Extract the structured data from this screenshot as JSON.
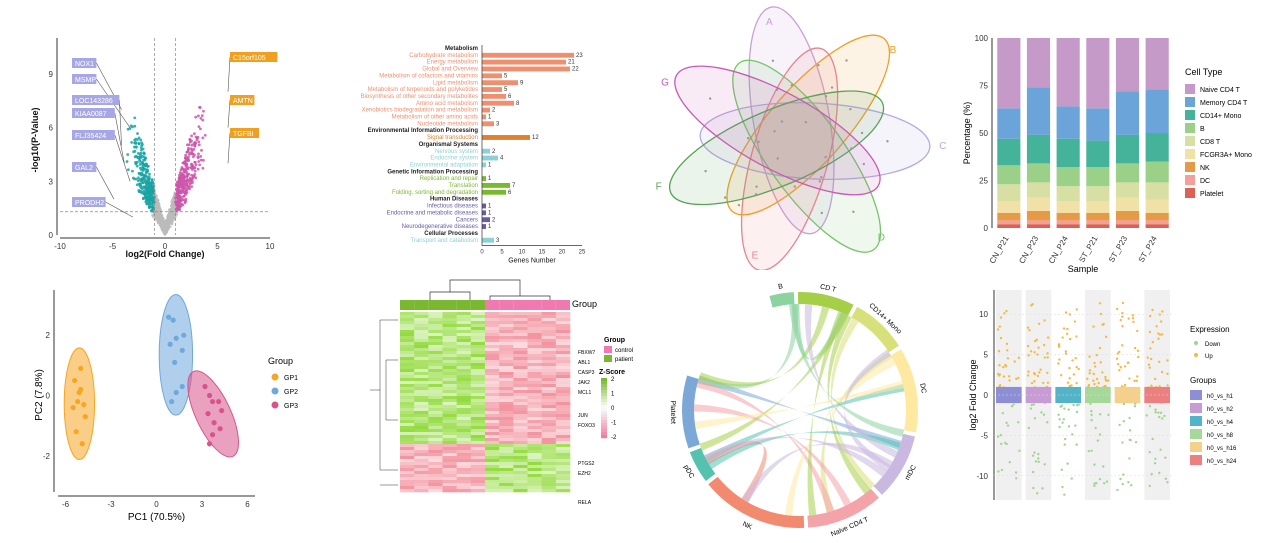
{
  "colors": {
    "volcano_down": "#1aa3a3",
    "volcano_up": "#cc55aa",
    "volcano_ns": "#bbbbbb",
    "label_down": "#a7a7e8",
    "label_up": "#f0a020",
    "bar_metab": "#ee9070",
    "bar_env": "#dd8030",
    "bar_org": "#8cd0d8",
    "bar_gen": "#7ab830",
    "bar_hd": "#6a5aa8",
    "bar_cell": "#8cd0d8",
    "pca_gp1": "#f5a623",
    "pca_gp2": "#6fa8dc",
    "pca_gp3": "#d9538a",
    "heat_control": "#f07ab0",
    "heat_patient": "#7ab830"
  },
  "chart_data": [
    {
      "type": "scatter",
      "name": "volcano",
      "xlabel": "log2(Fold Change)",
      "ylabel": "-log10(P-Value)",
      "xlim": [
        -10,
        10
      ],
      "ylim": [
        0,
        11
      ],
      "xticks": [
        "-10",
        "-5",
        "0",
        "5",
        "10"
      ],
      "yticks": [
        "0",
        "3",
        "6",
        "9"
      ],
      "down_labels": [
        "NOX1",
        "MSMP",
        "LOC143286",
        "KIAA0087",
        "FLJ35424",
        "GAL2",
        "PRODH2"
      ],
      "up_labels": [
        "C15orf105",
        "AMTN",
        "TGFBI"
      ]
    },
    {
      "type": "bar",
      "name": "kegg",
      "xlabel": "Genes Number",
      "xlim": [
        0,
        25
      ],
      "xticks": [
        "0",
        "5",
        "10",
        "15",
        "20",
        "25"
      ],
      "rows": [
        {
          "label": "Metabolism",
          "header": true
        },
        {
          "label": "Carbohydrate metabolism",
          "value": 23,
          "group": "metab"
        },
        {
          "label": "Energy metabolism",
          "value": 21,
          "group": "metab"
        },
        {
          "label": "Global and Overview",
          "value": 22,
          "group": "metab"
        },
        {
          "label": "Metabolism of cofactors and vitamins",
          "value": 5,
          "group": "metab"
        },
        {
          "label": "Lipid metabolism",
          "value": 9,
          "group": "metab"
        },
        {
          "label": "Metabolism of terpenoids and polyketides",
          "value": 5,
          "group": "metab"
        },
        {
          "label": "Biosynthesis of other secondary metabolites",
          "value": 6,
          "group": "metab"
        },
        {
          "label": "Amino acid metabolism",
          "value": 8,
          "group": "metab"
        },
        {
          "label": "Xenobiotics biodegradation and metabolism",
          "value": 2,
          "group": "metab"
        },
        {
          "label": "Metabolism of other amino acids",
          "value": 1,
          "group": "metab"
        },
        {
          "label": "Nucleotide metabolism",
          "value": 3,
          "group": "metab"
        },
        {
          "label": "Environmental Information Processing",
          "header": true
        },
        {
          "label": "Signal transduction",
          "value": 12,
          "group": "env"
        },
        {
          "label": "Organismal Systems",
          "header": true
        },
        {
          "label": "Nervous system",
          "value": 2,
          "group": "org"
        },
        {
          "label": "Endocrine system",
          "value": 4,
          "group": "org"
        },
        {
          "label": "Environmental adaptation",
          "value": 1,
          "group": "org"
        },
        {
          "label": "Genetic Information Processing",
          "header": true
        },
        {
          "label": "Replication and repair",
          "value": 1,
          "group": "gen"
        },
        {
          "label": "Translation",
          "value": 7,
          "group": "gen"
        },
        {
          "label": "Folding, sorting and degradation",
          "value": 6,
          "group": "gen"
        },
        {
          "label": "Human Diseases",
          "header": true
        },
        {
          "label": "Infectious diseases",
          "value": 1,
          "group": "hd"
        },
        {
          "label": "Endocrine and metabolic diseases",
          "value": 1,
          "group": "hd"
        },
        {
          "label": "Cancers",
          "value": 2,
          "group": "hd"
        },
        {
          "label": "Neurodegenerative diseases",
          "value": 1,
          "group": "hd"
        },
        {
          "label": "Cellular Processes",
          "header": true
        },
        {
          "label": "Transport and catabolism",
          "value": 3,
          "group": "cell"
        }
      ]
    },
    {
      "type": "other",
      "name": "venn",
      "sets": [
        "A",
        "B",
        "C",
        "D",
        "E",
        "F",
        "G"
      ],
      "set_colors": [
        "#c8a0d8",
        "#f0a020",
        "#b8a8e0",
        "#77c36a",
        "#e7838f",
        "#59a257",
        "#c85ab4"
      ]
    },
    {
      "type": "bar",
      "name": "stacked",
      "xlabel": "Sample",
      "ylabel": "Percentage (%)",
      "ylim": [
        0,
        100
      ],
      "yticks": [
        "0",
        "25",
        "50",
        "75",
        "100"
      ],
      "categories": [
        "CN_P21",
        "CN_P23",
        "CN_P24",
        "ST_P21",
        "ST_P23",
        "ST_P24"
      ],
      "legend_title": "Cell Type",
      "series": [
        {
          "name": "Platelet",
          "color": "#dd6055",
          "values": [
            2,
            2,
            2,
            2,
            2,
            2
          ]
        },
        {
          "name": "DC",
          "color": "#f4a09a",
          "values": [
            2,
            2,
            2,
            2,
            2,
            2
          ]
        },
        {
          "name": "NK",
          "color": "#e69a45",
          "values": [
            4,
            5,
            4,
            4,
            5,
            4
          ]
        },
        {
          "name": "FCGR3A+ Mono",
          "color": "#f2e1a6",
          "values": [
            6,
            7,
            6,
            6,
            7,
            7
          ]
        },
        {
          "name": "CD8 T",
          "color": "#d8dfa4",
          "values": [
            9,
            8,
            8,
            8,
            8,
            9
          ]
        },
        {
          "name": "B",
          "color": "#9bd089",
          "values": [
            10,
            10,
            10,
            10,
            10,
            11
          ]
        },
        {
          "name": "CD14+ Mono",
          "color": "#45b39a",
          "values": [
            14,
            15,
            15,
            14,
            15,
            15
          ]
        },
        {
          "name": "Memory CD4 T",
          "color": "#6aa4d8",
          "values": [
            16,
            25,
            17,
            17,
            23,
            23
          ]
        },
        {
          "name": "Naive CD4 T",
          "color": "#c599c8",
          "values": [
            37,
            26,
            36,
            37,
            28,
            27
          ]
        }
      ],
      "legend_order": [
        "Naive CD4 T",
        "Memory CD4 T",
        "CD14+ Mono",
        "B",
        "CD8 T",
        "FCGR3A+ Mono",
        "NK",
        "DC",
        "Platelet"
      ]
    },
    {
      "type": "scatter",
      "name": "pca",
      "xlabel": "PC1 (70.5%)",
      "ylabel": "PC2 (7.8%)",
      "xlim": [
        -6.5,
        6.5
      ],
      "ylim": [
        -3.2,
        3.5
      ],
      "xticks": [
        -6,
        -3,
        0,
        3,
        6
      ],
      "yticks": [
        -2,
        0,
        2
      ],
      "legend_title": "Group",
      "series": [
        {
          "name": "GP1",
          "points": [
            [
              -5.4,
              0.5
            ],
            [
              -5.0,
              0.2
            ],
            [
              -5.2,
              -0.2
            ],
            [
              -4.8,
              -0.3
            ],
            [
              -5.1,
              0.1
            ],
            [
              -5.3,
              -1.2
            ],
            [
              -4.9,
              -1.6
            ],
            [
              -5.0,
              0.9
            ],
            [
              -4.7,
              -0.7
            ],
            [
              -5.5,
              -0.4
            ]
          ]
        },
        {
          "name": "GP2",
          "points": [
            [
              0.8,
              2.6
            ],
            [
              1.1,
              2.5
            ],
            [
              1.3,
              1.9
            ],
            [
              0.9,
              1.7
            ],
            [
              1.7,
              1.5
            ],
            [
              1.2,
              1.1
            ],
            [
              1.7,
              0.3
            ],
            [
              1.3,
              0.1
            ],
            [
              1.0,
              -0.2
            ],
            [
              1.8,
              2.0
            ]
          ]
        },
        {
          "name": "GP3",
          "points": [
            [
              3.2,
              0.3
            ],
            [
              3.5,
              0.0
            ],
            [
              3.7,
              -0.2
            ],
            [
              4.1,
              -0.2
            ],
            [
              3.4,
              -0.6
            ],
            [
              3.8,
              -0.9
            ],
            [
              4.3,
              -0.5
            ],
            [
              3.7,
              -1.3
            ],
            [
              3.5,
              -1.6
            ],
            [
              4.2,
              -1.1
            ]
          ]
        }
      ]
    },
    {
      "type": "heatmap",
      "name": "heatmap",
      "legend_title": "Group",
      "groups": [
        "control",
        "patient"
      ],
      "zscore_title": "Z-Score",
      "zscore_ticks": [
        "2",
        "1",
        "0",
        "-1",
        "-2"
      ],
      "gene_labels": [
        "FBXW7",
        "ABL1",
        "CASP3",
        "JAK2",
        "MCL1",
        "JUN",
        "FOXO3",
        "PTGS2",
        "EZH2",
        "RELA"
      ]
    },
    {
      "type": "other",
      "name": "chord",
      "sectors": [
        "B",
        "CD T",
        "CD14+ Mono",
        "DC",
        "mDC",
        "Naive CD4 T",
        "NK",
        "pDC",
        "Platelet"
      ],
      "sector_colors": [
        "#8dd3a0",
        "#a6cf48",
        "#d8e07a",
        "#ffe9a0",
        "#c9b8e0",
        "#f4a3a8",
        "#f28a70",
        "#55c2b0",
        "#7ca8d8"
      ]
    },
    {
      "type": "scatter",
      "name": "volcano2",
      "ylabel": "log2 Fold Change",
      "ylim": [
        -13,
        13
      ],
      "yticks": [
        "10",
        "5",
        "0",
        "-5",
        "-10"
      ],
      "legend_expression_title": "Expression",
      "expression": [
        "Down",
        "Up"
      ],
      "legend_groups_title": "Groups",
      "groups": [
        {
          "name": "h0_vs_h1",
          "color": "#8c8fd6"
        },
        {
          "name": "h0_vs_h2",
          "color": "#c79bd4"
        },
        {
          "name": "h0_vs_h4",
          "color": "#52b4c9"
        },
        {
          "name": "h0_vs_h8",
          "color": "#a6d89a"
        },
        {
          "name": "h0_vs_h16",
          "color": "#f4d08a"
        },
        {
          "name": "h0_vs_h24",
          "color": "#ec8080"
        }
      ]
    }
  ]
}
